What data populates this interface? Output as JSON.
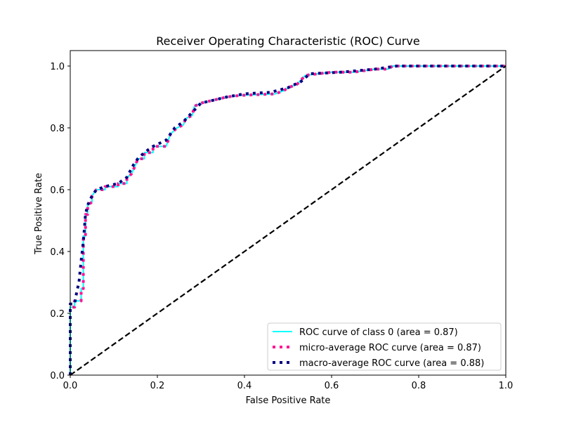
{
  "chart_data": {
    "type": "line",
    "title": "Receiver Operating Characteristic (ROC) Curve",
    "xlabel": "False Positive Rate",
    "ylabel": "True Positive Rate",
    "xlim": [
      0.0,
      1.0
    ],
    "ylim": [
      0.0,
      1.05
    ],
    "x_ticks": [
      "0.0",
      "0.2",
      "0.4",
      "0.6",
      "0.8",
      "1.0"
    ],
    "y_ticks": [
      "0.0",
      "0.2",
      "0.4",
      "0.6",
      "0.8",
      "1.0"
    ],
    "grid": false,
    "legend_position": "lower-right",
    "series": [
      {
        "name": "ROC curve of class 0 (area = 0.87)",
        "color": "#00ffff",
        "style": "solid",
        "points": [
          [
            0.0,
            0.0
          ],
          [
            0.0,
            0.22
          ],
          [
            0.01,
            0.22
          ],
          [
            0.01,
            0.24
          ],
          [
            0.025,
            0.24
          ],
          [
            0.025,
            0.28
          ],
          [
            0.03,
            0.28
          ],
          [
            0.03,
            0.45
          ],
          [
            0.035,
            0.45
          ],
          [
            0.035,
            0.52
          ],
          [
            0.04,
            0.52
          ],
          [
            0.04,
            0.55
          ],
          [
            0.05,
            0.56
          ],
          [
            0.05,
            0.58
          ],
          [
            0.06,
            0.6
          ],
          [
            0.08,
            0.6
          ],
          [
            0.08,
            0.61
          ],
          [
            0.11,
            0.61
          ],
          [
            0.11,
            0.62
          ],
          [
            0.13,
            0.62
          ],
          [
            0.13,
            0.64
          ],
          [
            0.14,
            0.65
          ],
          [
            0.15,
            0.68
          ],
          [
            0.155,
            0.7
          ],
          [
            0.17,
            0.7
          ],
          [
            0.17,
            0.72
          ],
          [
            0.19,
            0.72
          ],
          [
            0.19,
            0.74
          ],
          [
            0.22,
            0.74
          ],
          [
            0.23,
            0.78
          ],
          [
            0.245,
            0.8
          ],
          [
            0.26,
            0.81
          ],
          [
            0.265,
            0.83
          ],
          [
            0.28,
            0.84
          ],
          [
            0.285,
            0.87
          ],
          [
            0.3,
            0.88
          ],
          [
            0.33,
            0.89
          ],
          [
            0.36,
            0.9
          ],
          [
            0.39,
            0.905
          ],
          [
            0.47,
            0.91
          ],
          [
            0.49,
            0.92
          ],
          [
            0.5,
            0.93
          ],
          [
            0.52,
            0.94
          ],
          [
            0.54,
            0.97
          ],
          [
            0.6,
            0.98
          ],
          [
            0.65,
            0.98
          ],
          [
            0.7,
            0.99
          ],
          [
            0.73,
            0.99
          ],
          [
            0.74,
            1.0
          ],
          [
            1.0,
            1.0
          ]
        ]
      },
      {
        "name": "micro-average ROC curve (area = 0.87)",
        "color": "#ff1493",
        "style": "dotted",
        "points": [
          [
            0.0,
            0.0
          ],
          [
            0.0,
            0.22
          ],
          [
            0.01,
            0.22
          ],
          [
            0.01,
            0.24
          ],
          [
            0.025,
            0.24
          ],
          [
            0.025,
            0.28
          ],
          [
            0.03,
            0.28
          ],
          [
            0.03,
            0.45
          ],
          [
            0.035,
            0.45
          ],
          [
            0.035,
            0.52
          ],
          [
            0.04,
            0.52
          ],
          [
            0.04,
            0.55
          ],
          [
            0.05,
            0.56
          ],
          [
            0.05,
            0.58
          ],
          [
            0.06,
            0.6
          ],
          [
            0.08,
            0.6
          ],
          [
            0.08,
            0.61
          ],
          [
            0.11,
            0.61
          ],
          [
            0.11,
            0.62
          ],
          [
            0.13,
            0.62
          ],
          [
            0.13,
            0.64
          ],
          [
            0.14,
            0.65
          ],
          [
            0.15,
            0.68
          ],
          [
            0.155,
            0.7
          ],
          [
            0.17,
            0.7
          ],
          [
            0.17,
            0.72
          ],
          [
            0.19,
            0.72
          ],
          [
            0.19,
            0.74
          ],
          [
            0.22,
            0.74
          ],
          [
            0.23,
            0.78
          ],
          [
            0.245,
            0.8
          ],
          [
            0.26,
            0.81
          ],
          [
            0.265,
            0.83
          ],
          [
            0.28,
            0.84
          ],
          [
            0.285,
            0.87
          ],
          [
            0.3,
            0.88
          ],
          [
            0.33,
            0.89
          ],
          [
            0.36,
            0.9
          ],
          [
            0.39,
            0.905
          ],
          [
            0.47,
            0.91
          ],
          [
            0.49,
            0.92
          ],
          [
            0.5,
            0.93
          ],
          [
            0.52,
            0.94
          ],
          [
            0.54,
            0.97
          ],
          [
            0.6,
            0.98
          ],
          [
            0.65,
            0.98
          ],
          [
            0.7,
            0.99
          ],
          [
            0.73,
            0.99
          ],
          [
            0.74,
            1.0
          ],
          [
            1.0,
            1.0
          ]
        ]
      },
      {
        "name": "macro-average ROC curve (area = 0.88)",
        "color": "#000080",
        "style": "dotted",
        "points": [
          [
            0.0,
            0.0
          ],
          [
            0.0,
            0.23
          ],
          [
            0.01,
            0.23
          ],
          [
            0.015,
            0.27
          ],
          [
            0.02,
            0.3
          ],
          [
            0.025,
            0.37
          ],
          [
            0.03,
            0.43
          ],
          [
            0.035,
            0.52
          ],
          [
            0.04,
            0.55
          ],
          [
            0.05,
            0.58
          ],
          [
            0.06,
            0.6
          ],
          [
            0.08,
            0.61
          ],
          [
            0.11,
            0.62
          ],
          [
            0.13,
            0.64
          ],
          [
            0.145,
            0.68
          ],
          [
            0.155,
            0.7
          ],
          [
            0.17,
            0.72
          ],
          [
            0.19,
            0.74
          ],
          [
            0.22,
            0.76
          ],
          [
            0.24,
            0.8
          ],
          [
            0.26,
            0.82
          ],
          [
            0.28,
            0.85
          ],
          [
            0.3,
            0.88
          ],
          [
            0.33,
            0.89
          ],
          [
            0.36,
            0.9
          ],
          [
            0.4,
            0.91
          ],
          [
            0.46,
            0.915
          ],
          [
            0.5,
            0.93
          ],
          [
            0.53,
            0.95
          ],
          [
            0.55,
            0.975
          ],
          [
            0.62,
            0.98
          ],
          [
            0.7,
            0.99
          ],
          [
            0.75,
            1.0
          ],
          [
            1.0,
            1.0
          ]
        ]
      },
      {
        "name": "",
        "color": "#000000",
        "style": "dashed",
        "points": [
          [
            0.0,
            0.0
          ],
          [
            1.0,
            1.0
          ]
        ]
      }
    ]
  }
}
